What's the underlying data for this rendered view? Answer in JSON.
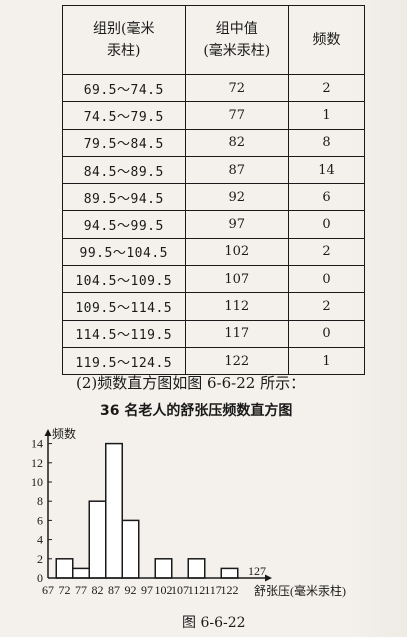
{
  "table": {
    "headers": [
      "组别(毫米\n汞柱)",
      "组中值\n(毫米汞柱)",
      "频数"
    ],
    "rows": [
      [
        "69.5～74.5",
        "72",
        "2"
      ],
      [
        "74.5～79.5",
        "77",
        "1"
      ],
      [
        "79.5～84.5",
        "82",
        "8"
      ],
      [
        "84.5～89.5",
        "87",
        "14"
      ],
      [
        "89.5～94.5",
        "92",
        "6"
      ],
      [
        "94.5～99.5",
        "97",
        "0"
      ],
      [
        "99.5～104.5",
        "102",
        "2"
      ],
      [
        "104.5～109.5",
        "107",
        "0"
      ],
      [
        "109.5～114.5",
        "112",
        "2"
      ],
      [
        "114.5～119.5",
        "117",
        "0"
      ],
      [
        "119.5～124.5",
        "122",
        "1"
      ]
    ]
  },
  "caption_intro": "(2)频数直方图如图 6-6-22 所示：",
  "chart_title": "36 名老人的舒张压频数直方图",
  "figure_caption": "图 6-6-22",
  "chart_data": {
    "type": "bar",
    "title": "36 名老人的舒张压频数直方图",
    "ylabel": "频数",
    "xlabel": "舒张压(毫米汞柱)",
    "ylim": [
      0,
      15
    ],
    "y_ticks": [
      "0",
      "2",
      "4",
      "6",
      "8",
      "10",
      "12",
      "14"
    ],
    "x_ticks": [
      "67",
      "72",
      "77",
      "82",
      "87",
      "92",
      "97",
      "102",
      "107",
      "112",
      "117",
      "122",
      "127"
    ],
    "categories": [
      "72",
      "77",
      "82",
      "87",
      "92",
      "97",
      "102",
      "107",
      "112",
      "117",
      "122"
    ],
    "values": [
      2,
      1,
      8,
      14,
      6,
      0,
      2,
      0,
      2,
      0,
      1
    ]
  }
}
